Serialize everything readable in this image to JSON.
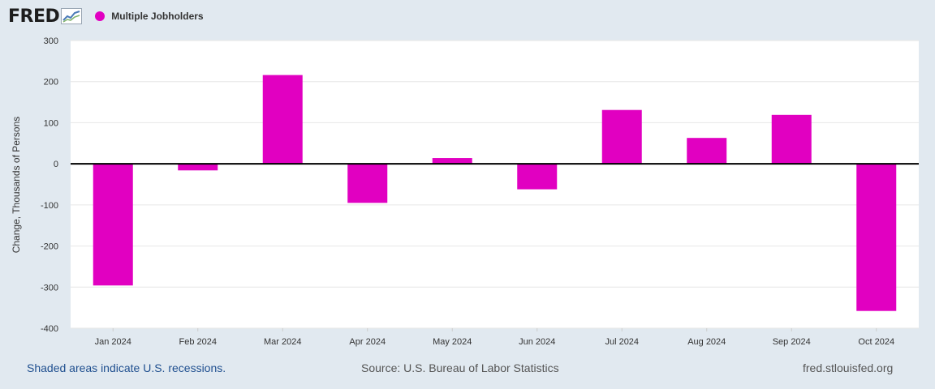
{
  "header": {
    "logo_text": "FRED",
    "logo_icon": "line-chart-icon",
    "legend_label": "Multiple Jobholders"
  },
  "colors": {
    "background": "#e1e9f0",
    "plot_background": "#ffffff",
    "series": "#e100c1",
    "gridline": "#e6e6e6",
    "zero_line": "#000000",
    "tick_text": "#333333"
  },
  "chart_data": {
    "type": "bar",
    "categories": [
      "Jan 2024",
      "Feb 2024",
      "Mar 2024",
      "Apr 2024",
      "May 2024",
      "Jun 2024",
      "Jul 2024",
      "Aug 2024",
      "Sep 2024",
      "Oct 2024"
    ],
    "series": [
      {
        "name": "Multiple Jobholders",
        "values": [
          -296,
          -16,
          216,
          -95,
          14,
          -62,
          131,
          63,
          119,
          -358
        ]
      }
    ],
    "title": "",
    "xlabel": "",
    "ylabel": "Change, Thousands of Persons",
    "ylim": [
      -400,
      300
    ],
    "yticks": [
      "300",
      "200",
      "100",
      "0",
      "-100",
      "-200",
      "-300",
      "-400"
    ],
    "ytick_values": [
      300,
      200,
      100,
      0,
      -100,
      -200,
      -300,
      -400
    ],
    "grid": true,
    "legend_position": "top-left"
  },
  "footer": {
    "recessions_note": "Shaded areas indicate U.S. recessions.",
    "source": "Source: U.S. Bureau of Labor Statistics",
    "site": "fred.stlouisfed.org"
  }
}
